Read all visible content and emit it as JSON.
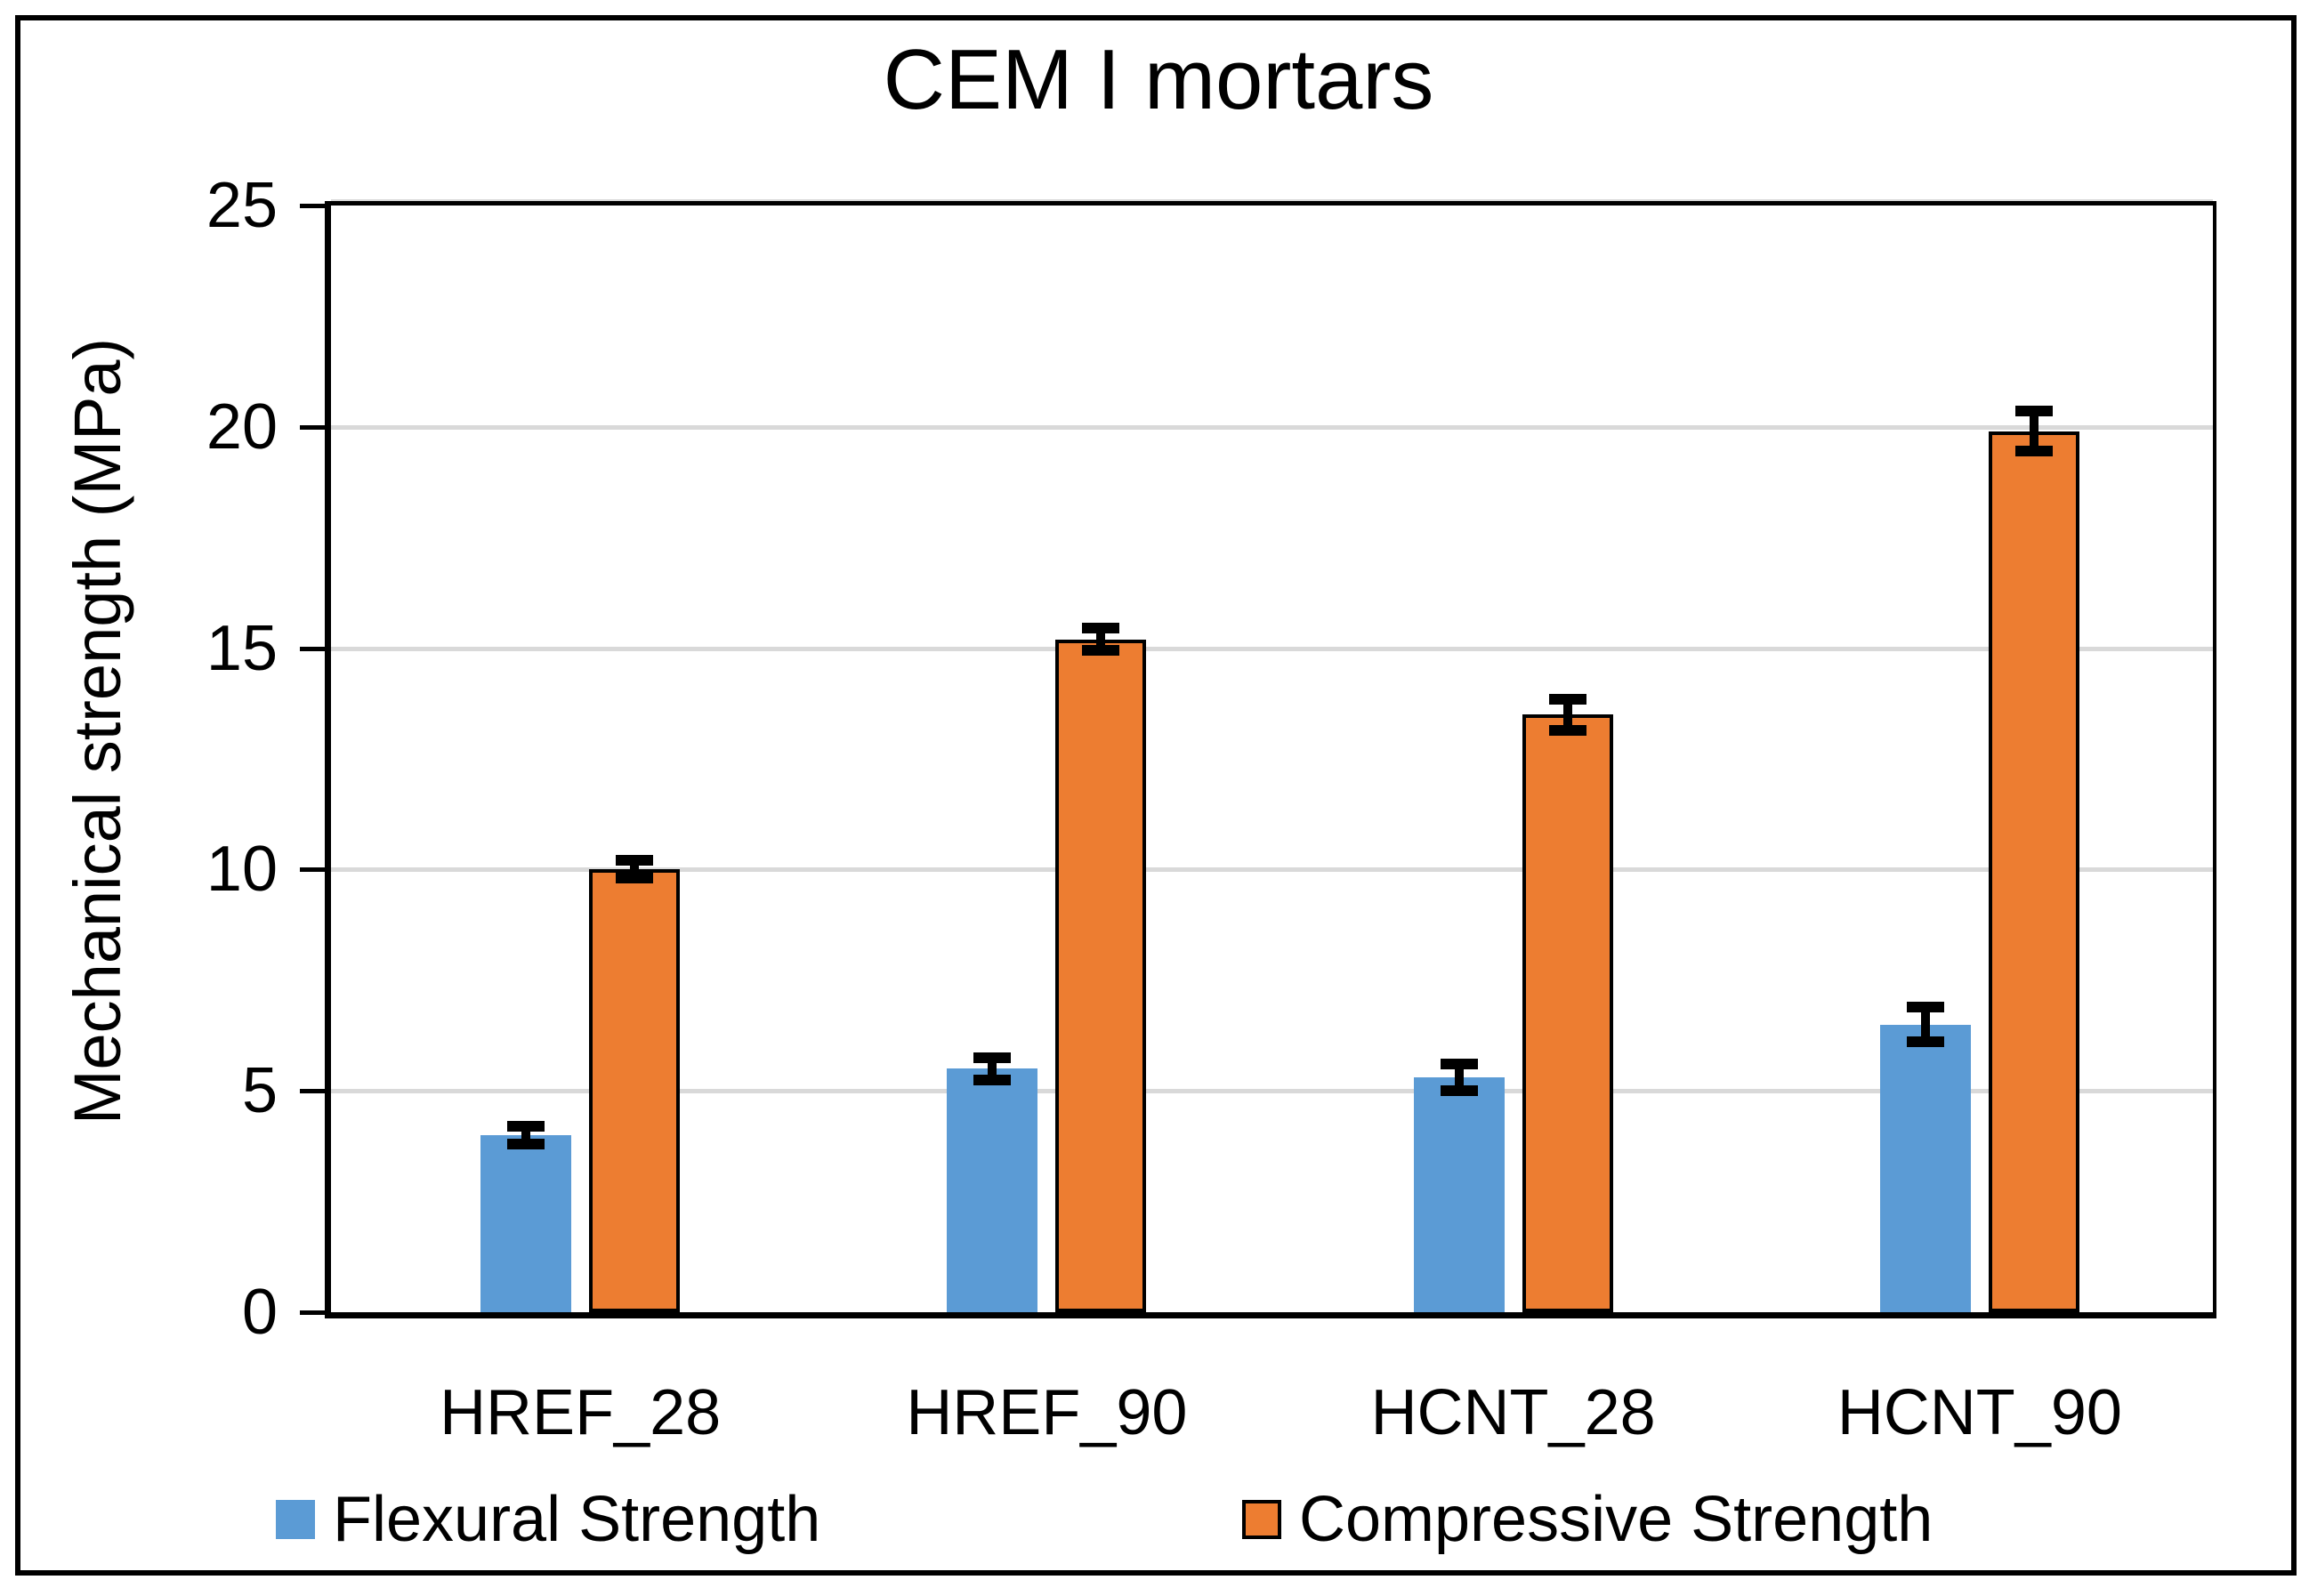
{
  "chart_data": {
    "type": "bar",
    "title": "CEM I mortars",
    "xlabel": "",
    "ylabel": "Mechanical strength (MPa)",
    "ylim": [
      0,
      25
    ],
    "yticks": [
      0,
      5,
      10,
      15,
      20,
      25
    ],
    "grid": true,
    "gridline_color": "#D9D9D9",
    "axis_color": "#000000",
    "error_bar_color": "#000000",
    "legend_position": "bottom",
    "categories": [
      "HREF_28",
      "HREF_90",
      "HCNT_28",
      "HCNT_90"
    ],
    "series": [
      {
        "name": "Flexural Strength",
        "color": "#5B9BD5",
        "border_color": "none",
        "values": [
          4.0,
          5.5,
          5.3,
          6.5
        ],
        "errors": [
          0.2,
          0.25,
          0.3,
          0.4
        ]
      },
      {
        "name": "Compressive Strength",
        "color": "#ED7D31",
        "border_color": "#000000",
        "values": [
          10.0,
          15.2,
          13.5,
          19.9
        ],
        "errors": [
          0.2,
          0.25,
          0.35,
          0.45
        ]
      }
    ]
  }
}
